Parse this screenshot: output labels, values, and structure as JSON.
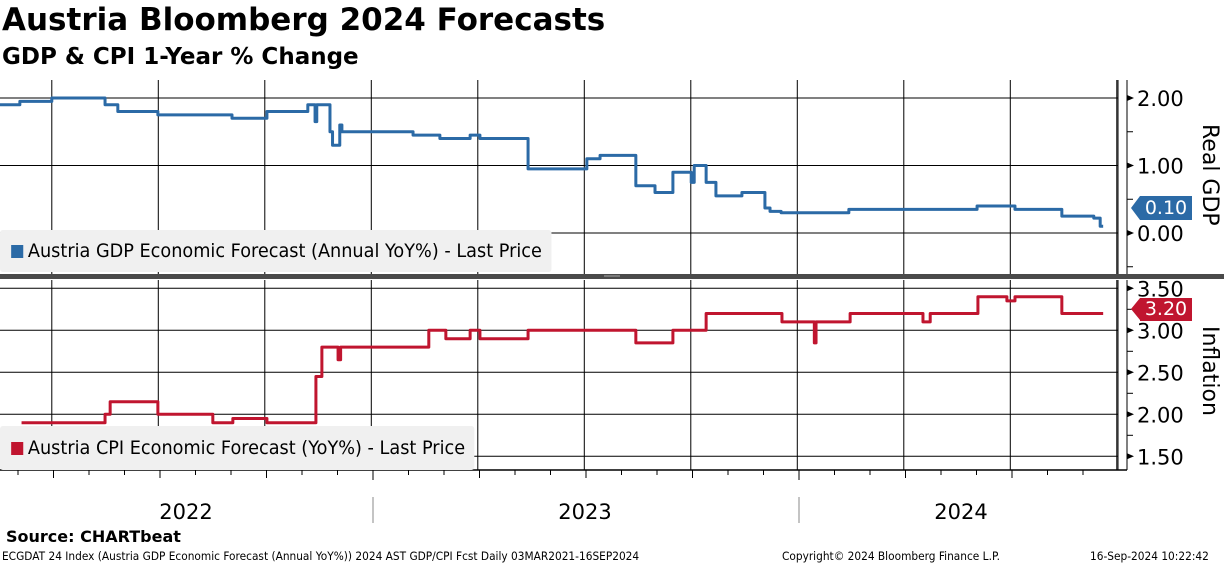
{
  "header": {
    "title": "Austria Bloomberg 2024 Forecasts",
    "subtitle": "GDP & CPI 1-Year % Change"
  },
  "footer": {
    "source": "Source: CHARTbeat",
    "ticker": "ECGDAT 24 Index (Austria GDP Economic Forecast (Annual YoY%)) 2024 AST GDP/CPI Fcst  Daily 03MAR2021-16SEP2024",
    "copyright": "Copyright© 2024 Bloomberg Finance L.P.",
    "timestamp": "16-Sep-2024 10:22:42"
  },
  "colors": {
    "gdp": "#2b6aa6",
    "cpi": "#c0152f",
    "legend_bg": "#f0f0f0",
    "separator": "#4a4a4a"
  },
  "chart_data": [
    {
      "type": "line",
      "title": "Austria GDP Economic Forecast (Annual YoY%)",
      "ylabel": "Real GDP",
      "ylim": [
        -0.5,
        2.5
      ],
      "yticks": [
        "2.00",
        "1.00",
        "0.00"
      ],
      "ytick_values": [
        2,
        1,
        0
      ],
      "legend": "Austria GDP Economic Forecast (Annual YoY%) - Last Price",
      "legend_placement": "bottom-left",
      "last_value": "0.10",
      "x_unit": "decimal year",
      "grid": true,
      "series": [
        {
          "name": "Austria GDP Economic Forecast (Annual YoY%) - Last Price",
          "step": true,
          "points": [
            [
              2022.124,
              1.9
            ],
            [
              2022.171,
              1.95
            ],
            [
              2022.246,
              2.0
            ],
            [
              2022.371,
              1.9
            ],
            [
              2022.401,
              1.8
            ],
            [
              2022.495,
              1.75
            ],
            [
              2022.669,
              1.7
            ],
            [
              2022.751,
              1.8
            ],
            [
              2022.847,
              1.9
            ],
            [
              2022.864,
              1.65
            ],
            [
              2022.868,
              1.9
            ],
            [
              2022.899,
              1.5
            ],
            [
              2022.905,
              1.3
            ],
            [
              2022.918,
              1.3
            ],
            [
              2022.922,
              1.6
            ],
            [
              2022.927,
              1.5
            ],
            [
              2023.094,
              1.45
            ],
            [
              2023.157,
              1.4
            ],
            [
              2023.228,
              1.45
            ],
            [
              2023.251,
              1.4
            ],
            [
              2023.364,
              0.95
            ],
            [
              2023.502,
              1.1
            ],
            [
              2023.533,
              1.15
            ],
            [
              2023.617,
              0.7
            ],
            [
              2023.662,
              0.6
            ],
            [
              2023.704,
              0.9
            ],
            [
              2023.747,
              0.75
            ],
            [
              2023.754,
              1.0
            ],
            [
              2023.782,
              0.75
            ],
            [
              2023.805,
              0.55
            ],
            [
              2023.866,
              0.6
            ],
            [
              2023.92,
              0.37
            ],
            [
              2023.932,
              0.32
            ],
            [
              2023.958,
              0.3
            ],
            [
              2024.117,
              0.35
            ],
            [
              2024.418,
              0.4
            ],
            [
              2024.507,
              0.35
            ],
            [
              2024.617,
              0.25
            ],
            [
              2024.692,
              0.22
            ],
            [
              2024.707,
              0.1
            ],
            [
              2024.714,
              0.1
            ]
          ]
        }
      ]
    },
    {
      "type": "line",
      "title": "Austria CPI Economic Forecast (YoY%)",
      "ylabel": "Inflation",
      "ylim": [
        1.35,
        3.55
      ],
      "yticks": [
        "3.50",
        "3.00",
        "2.50",
        "2.00",
        "1.50"
      ],
      "ytick_values": [
        3.5,
        3.0,
        2.5,
        2.0,
        1.5
      ],
      "legend": "Austria CPI Economic Forecast (YoY%) - Last Price",
      "legend_placement": "bottom-left",
      "last_value": "3.20",
      "x_unit": "decimal year",
      "grid": true,
      "xticks": [
        "2022",
        "2023",
        "2024"
      ],
      "series": [
        {
          "name": "Austria CPI Economic Forecast (YoY%) - Last Price",
          "step": true,
          "points": [
            [
              2022.175,
              1.9
            ],
            [
              2022.371,
              2.0
            ],
            [
              2022.383,
              2.15
            ],
            [
              2022.495,
              2.0
            ],
            [
              2022.624,
              1.9
            ],
            [
              2022.671,
              1.95
            ],
            [
              2022.751,
              1.9
            ],
            [
              2022.866,
              2.45
            ],
            [
              2022.88,
              2.8
            ],
            [
              2022.918,
              2.65
            ],
            [
              2022.924,
              2.8
            ],
            [
              2023.131,
              3.0
            ],
            [
              2023.171,
              2.9
            ],
            [
              2023.228,
              3.0
            ],
            [
              2023.251,
              2.9
            ],
            [
              2023.364,
              3.0
            ],
            [
              2023.617,
              2.85
            ],
            [
              2023.704,
              3.0
            ],
            [
              2023.782,
              3.2
            ],
            [
              2023.96,
              3.1
            ],
            [
              2024.036,
              2.85
            ],
            [
              2024.04,
              3.1
            ],
            [
              2024.12,
              3.2
            ],
            [
              2024.291,
              3.1
            ],
            [
              2024.308,
              3.2
            ],
            [
              2024.42,
              3.4
            ],
            [
              2024.488,
              3.35
            ],
            [
              2024.507,
              3.4
            ],
            [
              2024.617,
              3.2
            ],
            [
              2024.714,
              3.2
            ]
          ]
        }
      ]
    }
  ]
}
